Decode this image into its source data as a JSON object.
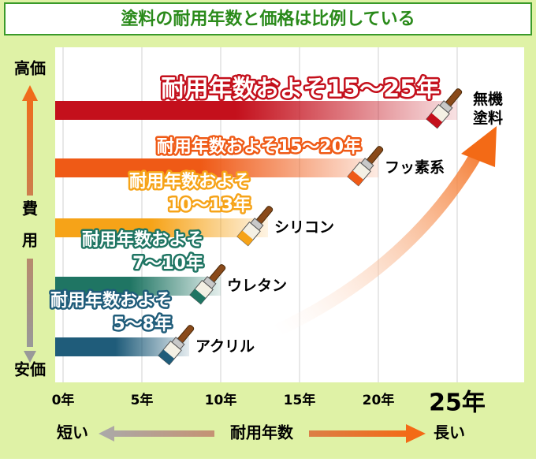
{
  "chart_data": {
    "type": "bar",
    "orientation": "horizontal",
    "title": "塗料の耐用年数と価格は比例している",
    "categories": [
      "無機塗料",
      "フッ素系",
      "シリコン",
      "ウレタン",
      "アクリル"
    ],
    "values": [
      25,
      20,
      13,
      10,
      8
    ],
    "colors": [
      "#c4101c",
      "#ef5a16",
      "#f6a318",
      "#1f7563",
      "#1f5c7a"
    ],
    "annotations": [
      [
        "耐用年数およそ15～25年"
      ],
      [
        "耐用年数およそ15～20年"
      ],
      [
        "耐用年数およそ",
        "10～13年"
      ],
      [
        "耐用年数およそ",
        "7～10年"
      ],
      [
        "耐用年数およそ",
        "5～8年"
      ]
    ],
    "xlim": [
      -0.5,
      29.25
    ],
    "xticks": [
      {
        "value": 0,
        "label": "0年"
      },
      {
        "value": 5,
        "label": "5年"
      },
      {
        "value": 10,
        "label": "10年"
      },
      {
        "value": 15,
        "label": "15年"
      },
      {
        "value": 20,
        "label": "20年"
      },
      {
        "value": 25,
        "label": "25年"
      }
    ],
    "y_axis": {
      "high": "高価",
      "low": "安価",
      "label": [
        "費",
        "用"
      ]
    },
    "x_axis": {
      "short": "短い",
      "label": "耐用年数",
      "long": "長い"
    },
    "grid": true
  }
}
